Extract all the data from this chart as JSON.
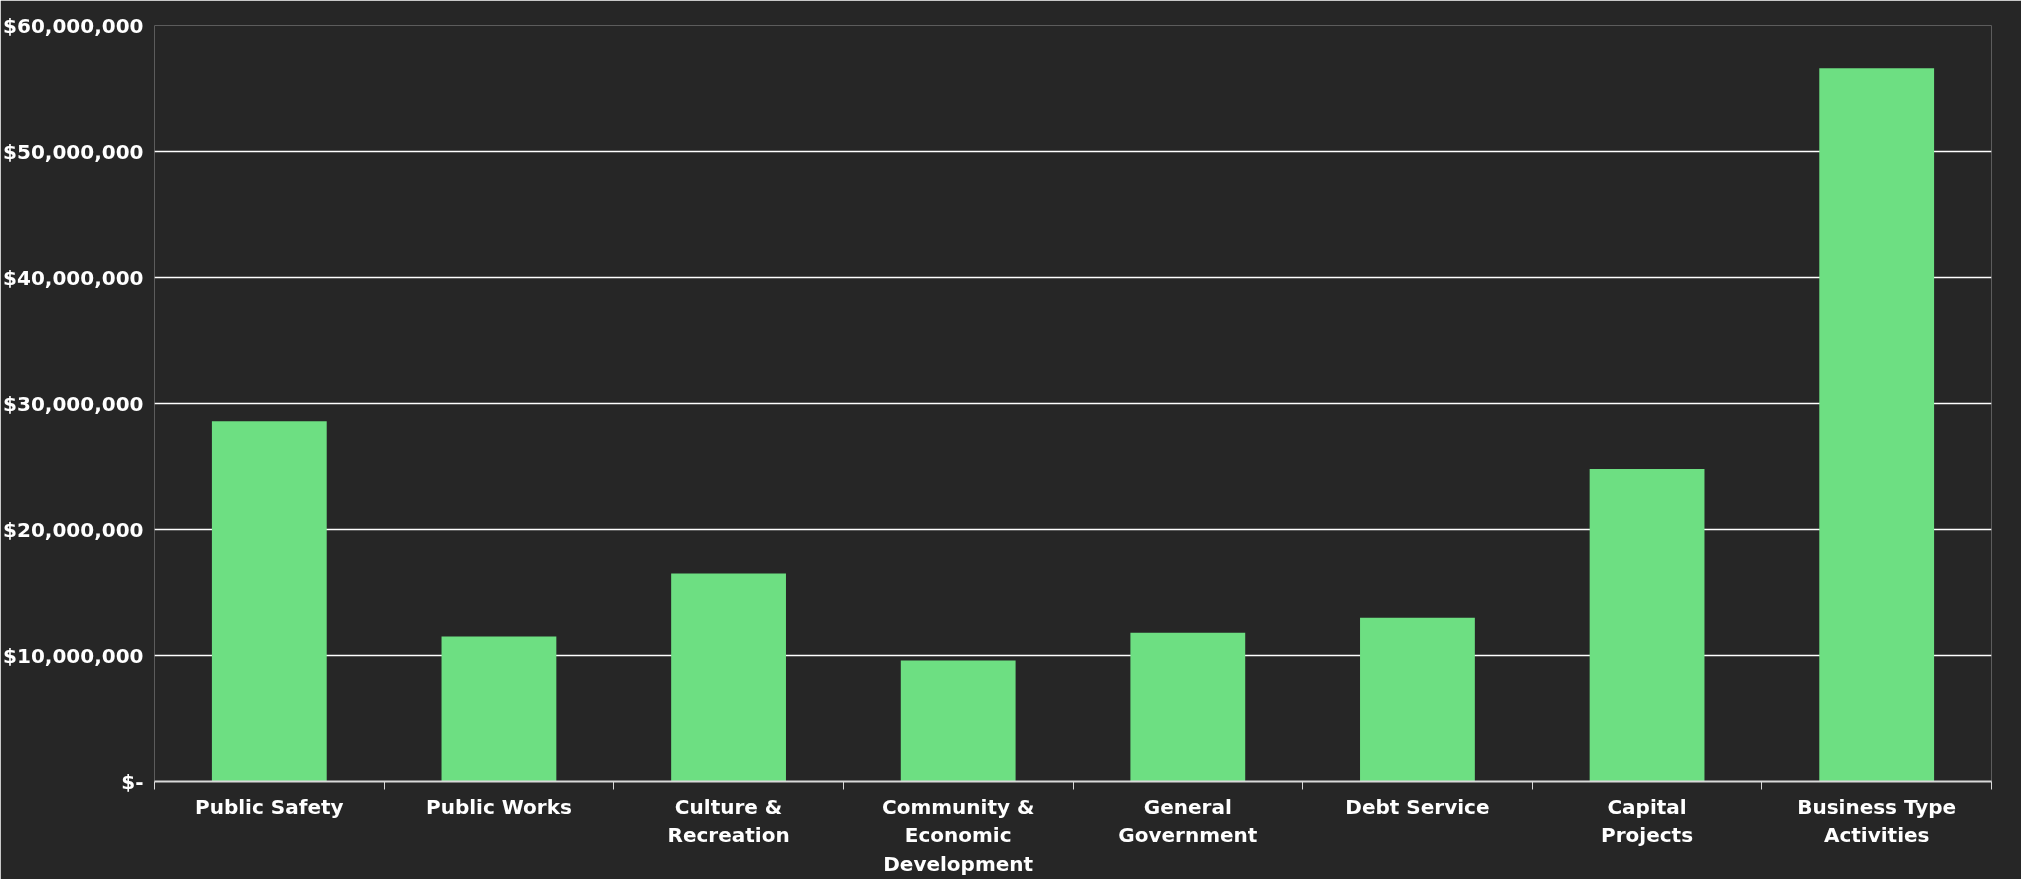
{
  "chart_data": {
    "type": "bar",
    "categories": [
      "Public Safety",
      "Public Works",
      "Culture & Recreation",
      "Community & Economic Development",
      "General Government",
      "Debt Service",
      "Capital Projects",
      "Business Type Activities"
    ],
    "values": [
      28600000,
      11500000,
      16500000,
      9600000,
      11800000,
      13000000,
      24800000,
      56600000
    ],
    "color": "#6ddf82",
    "ylim": [
      0,
      60000000
    ],
    "yticks": [
      {
        "value": 0,
        "label": "$-"
      },
      {
        "value": 10000000,
        "label": "$10,000,000"
      },
      {
        "value": 20000000,
        "label": "$20,000,000"
      },
      {
        "value": 30000000,
        "label": "$30,000,000"
      },
      {
        "value": 40000000,
        "label": "$40,000,000"
      },
      {
        "value": 50000000,
        "label": "$50,000,000"
      },
      {
        "value": 60000000,
        "label": "$60,000,000"
      }
    ],
    "grid": "y"
  }
}
